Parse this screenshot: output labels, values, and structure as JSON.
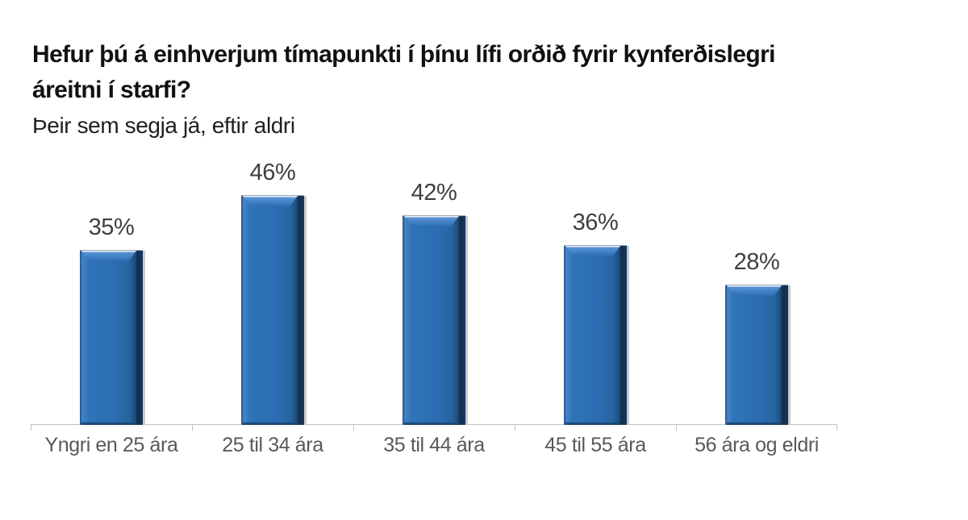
{
  "chart_data": {
    "type": "bar",
    "title": "Hefur þú á einhverjum tímapunkti í þínu lífi orðið fyrir kynferðislegri áreitni í starfi?",
    "title_lines": [
      "Hefur þú á einhverjum tímapunkti í þínu lífi orðið fyrir kynferðislegri",
      "áreitni í starfi?"
    ],
    "subtitle": "Þeir sem segja já, eftir aldri",
    "categories": [
      "Yngri en 25 ára",
      "25 til 34 ára",
      "35 til 44 ára",
      "45 til 55 ára",
      "56 ára og eldri"
    ],
    "values": [
      35,
      46,
      42,
      36,
      28
    ],
    "value_labels": [
      "35%",
      "46%",
      "42%",
      "36%",
      "28%"
    ],
    "unit": "percent",
    "xlabel": "",
    "ylabel": "",
    "ylim": [
      0,
      50
    ],
    "grid": false,
    "legend": false
  },
  "style": {
    "background": "#ffffff",
    "title_color": "#111111",
    "bar_fill": "#2b6db3",
    "bar_highlight": "#4384c7",
    "bar_edge_dark": "#16365c",
    "bar_shadow": "#cacaca",
    "axis_line": "#c0c0c0",
    "value_label_color": "#3f3f3f",
    "category_label_color": "#595959"
  }
}
